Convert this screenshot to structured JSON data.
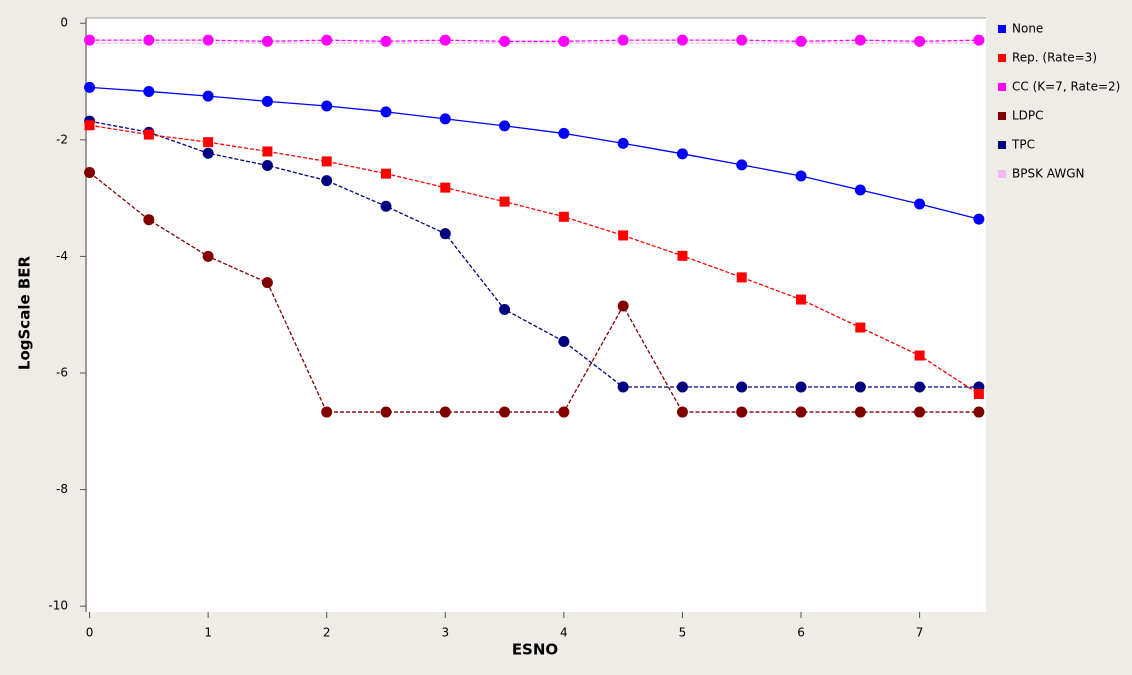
{
  "chart_data": {
    "type": "line",
    "xlabel": "ESNO",
    "ylabel": "LogScale BER",
    "x": [
      0,
      0.5,
      1,
      1.5,
      2,
      2.5,
      3,
      3.5,
      4,
      4.5,
      5,
      5.5,
      6,
      6.5,
      7,
      7.5
    ],
    "series": [
      {
        "name": "None",
        "color": "#0000ff",
        "marker": "circle",
        "dashed": false,
        "values": [
          -1.1,
          -1.17,
          -1.25,
          -1.34,
          -1.42,
          -1.52,
          -1.64,
          -1.76,
          -1.89,
          -2.06,
          -2.24,
          -2.43,
          -2.62,
          -2.86,
          -3.1,
          -3.36
        ]
      },
      {
        "name": "Rep. (Rate=3)",
        "color": "#ff0000",
        "marker": "square",
        "dashed": true,
        "values": [
          -1.75,
          -1.91,
          -2.04,
          -2.2,
          -2.37,
          -2.58,
          -2.82,
          -3.06,
          -3.32,
          -3.64,
          -3.99,
          -4.36,
          -4.74,
          -5.22,
          -5.7,
          -6.36
        ]
      },
      {
        "name": "CC (K=7, Rate=2)",
        "color": "#ff00ff",
        "marker": "circle",
        "dashed": true,
        "values": [
          -0.29,
          -0.29,
          -0.29,
          -0.31,
          -0.29,
          -0.31,
          -0.29,
          -0.31,
          -0.31,
          -0.29,
          -0.29,
          -0.29,
          -0.31,
          -0.29,
          -0.31,
          -0.29
        ]
      },
      {
        "name": "LDPC",
        "color": "#800000",
        "marker": "circle",
        "dashed": true,
        "values": [
          -2.56,
          -3.37,
          -4.0,
          -4.45,
          -6.67,
          -6.67,
          -6.67,
          -6.67,
          -6.67,
          -4.85,
          -6.67,
          -6.67,
          -6.67,
          -6.67,
          -6.67,
          -6.67
        ]
      },
      {
        "name": "TPC",
        "color": "#000080",
        "marker": "circle",
        "dashed": true,
        "values": [
          -1.68,
          -1.87,
          -2.23,
          -2.44,
          -2.7,
          -3.14,
          -3.61,
          -4.91,
          -5.46,
          -6.24,
          -6.24,
          -6.24,
          -6.24,
          -6.24,
          -6.24,
          -6.24
        ]
      },
      {
        "name": "BPSK AWGN",
        "color": "#f4b8f0",
        "marker": null,
        "dashed": true,
        "values": [
          -0.34,
          -0.34,
          -0.34,
          -0.34,
          -0.34,
          -0.34,
          -0.34,
          -0.34,
          -0.34,
          -0.34,
          -0.34,
          -0.34,
          -0.34,
          -0.34,
          -0.34,
          -0.34
        ]
      }
    ],
    "xlim": [
      -0.03,
      7.56
    ],
    "xticks": [
      0,
      1,
      2,
      3,
      4,
      5,
      6,
      7
    ],
    "ylim": [
      -10.1,
      0.09
    ],
    "yticks": [
      0,
      -2,
      -4,
      -6,
      -8,
      -10
    ],
    "legend": "right",
    "grid": false
  }
}
